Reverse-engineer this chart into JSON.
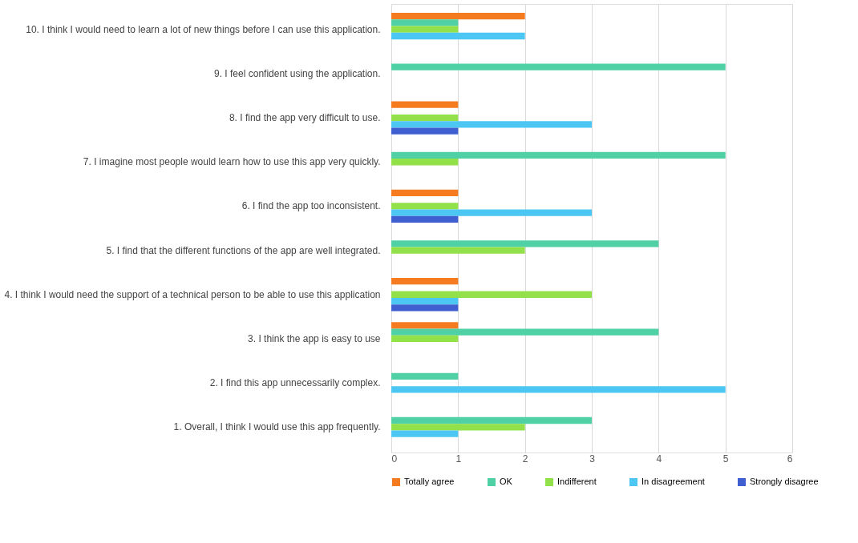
{
  "chart_data": {
    "type": "bar",
    "orientation": "horizontal",
    "categories": [
      "10. I think I would need to learn a lot of new things before I can use this application.",
      "9. I feel confident using the application.",
      "8. I find the app very difficult to use.",
      "7. I imagine most people would learn how to use this app very quickly.",
      "6. I find the app too inconsistent.",
      "5. I find that the different functions of the app are well integrated.",
      "4. I think I would need the support of a technical person to be able to use this application",
      "3. I think the app is easy to use",
      "2. I find this app unnecessarily complex.",
      "1. Overall, I think I would use this app frequently."
    ],
    "series": [
      {
        "name": "Totally agree",
        "color": "#f47b20",
        "values": [
          2,
          0,
          1,
          0,
          1,
          0,
          1,
          1,
          0,
          0
        ]
      },
      {
        "name": "OK",
        "color": "#4fd0a5",
        "values": [
          1,
          5,
          0,
          5,
          0,
          4,
          0,
          4,
          1,
          3
        ]
      },
      {
        "name": "Indifferent",
        "color": "#92e04a",
        "values": [
          1,
          0,
          1,
          1,
          1,
          2,
          3,
          1,
          0,
          2
        ]
      },
      {
        "name": "In disagreement",
        "color": "#4cc7f4",
        "values": [
          2,
          0,
          3,
          0,
          3,
          0,
          1,
          0,
          5,
          1
        ]
      },
      {
        "name": "Strongly disagree",
        "color": "#3f5fd0",
        "values": [
          0,
          0,
          1,
          0,
          1,
          0,
          1,
          0,
          0,
          0
        ]
      }
    ],
    "xlim": [
      0,
      6
    ],
    "xticks": [
      0,
      1,
      2,
      3,
      4,
      5,
      6
    ],
    "grid": "x",
    "legend": "bottom"
  }
}
